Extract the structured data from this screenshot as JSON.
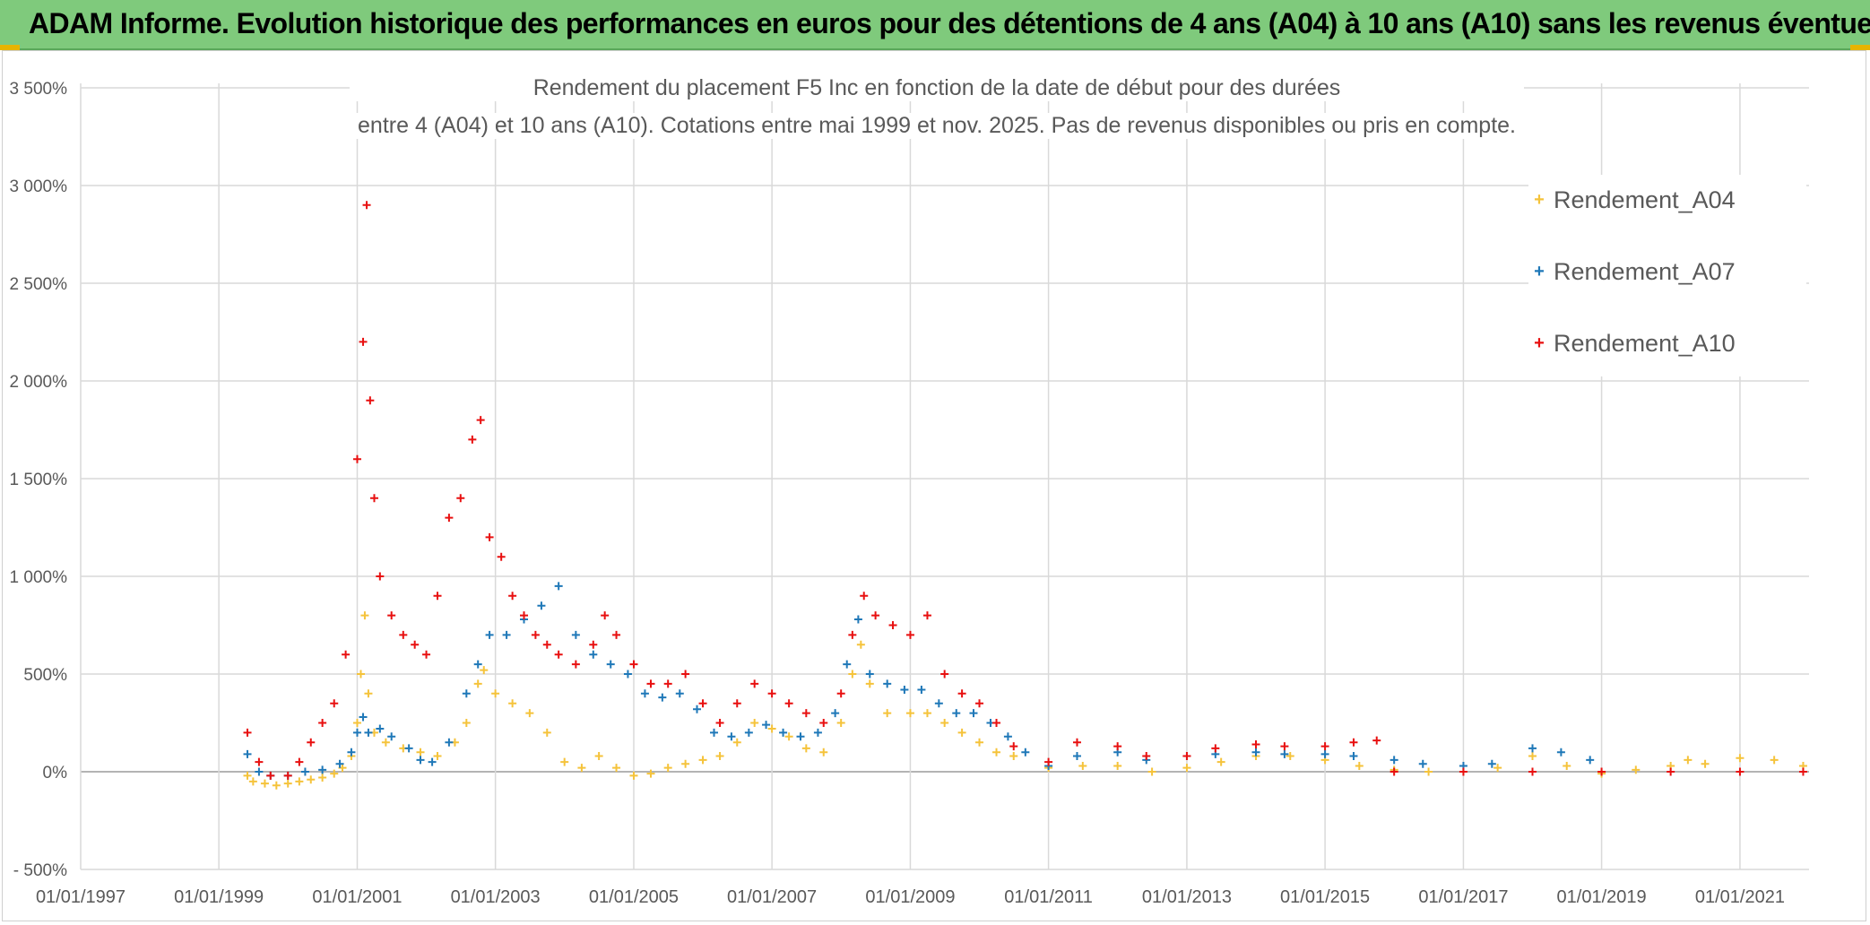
{
  "header": {
    "title": "ADAM Informe. Evolution historique des performances en euros pour des détentions de 4 ans (A04) à 10 ans (A10) sans les revenus éventuels"
  },
  "chart_data": {
    "type": "scatter",
    "title_line1": "Rendement du placement F5 Inc en fonction de la date de début pour des durées",
    "title_line2": "entre 4 (A04) et 10 ans (A10). Cotations entre mai 1999 et nov. 2025. Pas de revenus disponibles ou pris en compte.",
    "xlabel": "",
    "ylabel": "",
    "x_ticks": [
      "01/01/1997",
      "01/01/1999",
      "01/01/2001",
      "01/01/2003",
      "01/01/2005",
      "01/01/2007",
      "01/01/2009",
      "01/01/2011",
      "01/01/2013",
      "01/01/2015",
      "01/01/2017",
      "01/01/2019",
      "01/01/2021"
    ],
    "y_ticks": [
      "- 500%",
      "0%",
      "500%",
      "1 000%",
      "1 500%",
      "2 000%",
      "2 500%",
      "3 000%",
      "3 500%"
    ],
    "ylim": [
      -500,
      3500
    ],
    "xlim": [
      "1997-01-01",
      "2022-01-01"
    ],
    "grid": true,
    "legend_position": "top-right",
    "marker": "+",
    "series": [
      {
        "name": "Rendement_A04",
        "color": "#f5c33b",
        "points": [
          [
            "1999-06-01",
            -20
          ],
          [
            "1999-07-01",
            -50
          ],
          [
            "1999-09-01",
            -60
          ],
          [
            "1999-11-01",
            -70
          ],
          [
            "2000-01-01",
            -60
          ],
          [
            "2000-03-01",
            -50
          ],
          [
            "2000-05-01",
            -40
          ],
          [
            "2000-07-01",
            -30
          ],
          [
            "2000-09-01",
            -10
          ],
          [
            "2000-10-15",
            20
          ],
          [
            "2000-12-01",
            80
          ],
          [
            "2001-01-01",
            250
          ],
          [
            "2001-01-20",
            500
          ],
          [
            "2001-02-10",
            800
          ],
          [
            "2001-03-01",
            400
          ],
          [
            "2001-04-01",
            200
          ],
          [
            "2001-06-01",
            150
          ],
          [
            "2001-09-01",
            120
          ],
          [
            "2001-12-01",
            100
          ],
          [
            "2002-03-01",
            80
          ],
          [
            "2002-06-01",
            150
          ],
          [
            "2002-08-01",
            250
          ],
          [
            "2002-10-01",
            450
          ],
          [
            "2002-11-01",
            520
          ],
          [
            "2003-01-01",
            400
          ],
          [
            "2003-04-01",
            350
          ],
          [
            "2003-07-01",
            300
          ],
          [
            "2003-10-01",
            200
          ],
          [
            "2004-01-01",
            50
          ],
          [
            "2004-04-01",
            20
          ],
          [
            "2004-07-01",
            80
          ],
          [
            "2004-10-01",
            20
          ],
          [
            "2005-01-01",
            -20
          ],
          [
            "2005-04-01",
            -10
          ],
          [
            "2005-07-01",
            20
          ],
          [
            "2005-10-01",
            40
          ],
          [
            "2006-01-01",
            60
          ],
          [
            "2006-04-01",
            80
          ],
          [
            "2006-07-01",
            150
          ],
          [
            "2006-10-01",
            250
          ],
          [
            "2007-01-01",
            220
          ],
          [
            "2007-04-01",
            180
          ],
          [
            "2007-07-01",
            120
          ],
          [
            "2007-10-01",
            100
          ],
          [
            "2008-01-01",
            250
          ],
          [
            "2008-03-01",
            500
          ],
          [
            "2008-04-15",
            650
          ],
          [
            "2008-06-01",
            450
          ],
          [
            "2008-09-01",
            300
          ],
          [
            "2009-01-01",
            300
          ],
          [
            "2009-04-01",
            300
          ],
          [
            "2009-07-01",
            250
          ],
          [
            "2009-10-01",
            200
          ],
          [
            "2010-01-01",
            150
          ],
          [
            "2010-04-01",
            100
          ],
          [
            "2010-07-01",
            80
          ],
          [
            "2011-01-01",
            20
          ],
          [
            "2011-07-01",
            30
          ],
          [
            "2012-01-01",
            30
          ],
          [
            "2012-07-01",
            0
          ],
          [
            "2013-01-01",
            20
          ],
          [
            "2013-07-01",
            50
          ],
          [
            "2014-01-01",
            80
          ],
          [
            "2014-07-01",
            80
          ],
          [
            "2015-01-01",
            60
          ],
          [
            "2015-07-01",
            30
          ],
          [
            "2016-01-01",
            10
          ],
          [
            "2016-07-01",
            0
          ],
          [
            "2017-01-01",
            0
          ],
          [
            "2017-07-01",
            20
          ],
          [
            "2018-01-01",
            80
          ],
          [
            "2018-07-01",
            30
          ],
          [
            "2019-01-01",
            -10
          ],
          [
            "2019-07-01",
            10
          ],
          [
            "2020-01-01",
            30
          ],
          [
            "2020-04-01",
            60
          ],
          [
            "2020-07-01",
            40
          ],
          [
            "2021-01-01",
            70
          ],
          [
            "2021-07-01",
            60
          ],
          [
            "2021-12-01",
            30
          ]
        ]
      },
      {
        "name": "Rendement_A07",
        "color": "#1f78b8",
        "points": [
          [
            "1999-06-01",
            90
          ],
          [
            "1999-08-01",
            0
          ],
          [
            "1999-10-01",
            -20
          ],
          [
            "2000-01-01",
            -20
          ],
          [
            "2000-04-01",
            0
          ],
          [
            "2000-07-01",
            10
          ],
          [
            "2000-10-01",
            40
          ],
          [
            "2000-12-01",
            100
          ],
          [
            "2001-01-01",
            200
          ],
          [
            "2001-02-01",
            280
          ],
          [
            "2001-03-01",
            200
          ],
          [
            "2001-05-01",
            220
          ],
          [
            "2001-07-01",
            180
          ],
          [
            "2001-10-01",
            120
          ],
          [
            "2001-12-01",
            60
          ],
          [
            "2002-02-01",
            50
          ],
          [
            "2002-05-01",
            150
          ],
          [
            "2002-08-01",
            400
          ],
          [
            "2002-10-01",
            550
          ],
          [
            "2002-12-01",
            700
          ],
          [
            "2003-03-01",
            700
          ],
          [
            "2003-06-01",
            780
          ],
          [
            "2003-09-01",
            850
          ],
          [
            "2003-12-01",
            950
          ],
          [
            "2004-03-01",
            700
          ],
          [
            "2004-06-01",
            600
          ],
          [
            "2004-09-01",
            550
          ],
          [
            "2004-12-01",
            500
          ],
          [
            "2005-03-01",
            400
          ],
          [
            "2005-06-01",
            380
          ],
          [
            "2005-09-01",
            400
          ],
          [
            "2005-12-01",
            320
          ],
          [
            "2006-03-01",
            200
          ],
          [
            "2006-06-01",
            180
          ],
          [
            "2006-09-01",
            200
          ],
          [
            "2006-12-01",
            240
          ],
          [
            "2007-03-01",
            200
          ],
          [
            "2007-06-01",
            180
          ],
          [
            "2007-09-01",
            200
          ],
          [
            "2007-12-01",
            300
          ],
          [
            "2008-02-01",
            550
          ],
          [
            "2008-04-01",
            780
          ],
          [
            "2008-06-01",
            500
          ],
          [
            "2008-09-01",
            450
          ],
          [
            "2008-12-01",
            420
          ],
          [
            "2009-03-01",
            420
          ],
          [
            "2009-06-01",
            350
          ],
          [
            "2009-09-01",
            300
          ],
          [
            "2009-12-01",
            300
          ],
          [
            "2010-03-01",
            250
          ],
          [
            "2010-06-01",
            180
          ],
          [
            "2010-09-01",
            100
          ],
          [
            "2011-01-01",
            30
          ],
          [
            "2011-06-01",
            80
          ],
          [
            "2012-01-01",
            100
          ],
          [
            "2012-06-01",
            60
          ],
          [
            "2013-01-01",
            80
          ],
          [
            "2013-06-01",
            90
          ],
          [
            "2014-01-01",
            100
          ],
          [
            "2014-06-01",
            90
          ],
          [
            "2015-01-01",
            90
          ],
          [
            "2015-06-01",
            80
          ],
          [
            "2016-01-01",
            60
          ],
          [
            "2016-06-01",
            40
          ],
          [
            "2017-01-01",
            30
          ],
          [
            "2017-06-01",
            40
          ],
          [
            "2018-01-01",
            120
          ],
          [
            "2018-06-01",
            100
          ],
          [
            "2018-11-01",
            60
          ]
        ]
      },
      {
        "name": "Rendement_A10",
        "color": "#e81010",
        "points": [
          [
            "1999-06-01",
            200
          ],
          [
            "1999-08-01",
            50
          ],
          [
            "1999-10-01",
            -20
          ],
          [
            "2000-01-01",
            -20
          ],
          [
            "2000-03-01",
            50
          ],
          [
            "2000-05-01",
            150
          ],
          [
            "2000-07-01",
            250
          ],
          [
            "2000-09-01",
            350
          ],
          [
            "2000-11-01",
            600
          ],
          [
            "2001-01-01",
            1600
          ],
          [
            "2001-02-01",
            2200
          ],
          [
            "2001-02-20",
            2900
          ],
          [
            "2001-03-10",
            1900
          ],
          [
            "2001-04-01",
            1400
          ],
          [
            "2001-05-01",
            1000
          ],
          [
            "2001-07-01",
            800
          ],
          [
            "2001-09-01",
            700
          ],
          [
            "2001-11-01",
            650
          ],
          [
            "2002-01-01",
            600
          ],
          [
            "2002-03-01",
            900
          ],
          [
            "2002-05-01",
            1300
          ],
          [
            "2002-07-01",
            1400
          ],
          [
            "2002-09-01",
            1700
          ],
          [
            "2002-10-15",
            1800
          ],
          [
            "2002-12-01",
            1200
          ],
          [
            "2003-02-01",
            1100
          ],
          [
            "2003-04-01",
            900
          ],
          [
            "2003-06-01",
            800
          ],
          [
            "2003-08-01",
            700
          ],
          [
            "2003-10-01",
            650
          ],
          [
            "2003-12-01",
            600
          ],
          [
            "2004-03-01",
            550
          ],
          [
            "2004-06-01",
            650
          ],
          [
            "2004-08-01",
            800
          ],
          [
            "2004-10-01",
            700
          ],
          [
            "2005-01-01",
            550
          ],
          [
            "2005-04-01",
            450
          ],
          [
            "2005-07-01",
            450
          ],
          [
            "2005-10-01",
            500
          ],
          [
            "2006-01-01",
            350
          ],
          [
            "2006-04-01",
            250
          ],
          [
            "2006-07-01",
            350
          ],
          [
            "2006-10-01",
            450
          ],
          [
            "2007-01-01",
            400
          ],
          [
            "2007-04-01",
            350
          ],
          [
            "2007-07-01",
            300
          ],
          [
            "2007-10-01",
            250
          ],
          [
            "2008-01-01",
            400
          ],
          [
            "2008-03-01",
            700
          ],
          [
            "2008-05-01",
            900
          ],
          [
            "2008-07-01",
            800
          ],
          [
            "2008-10-01",
            750
          ],
          [
            "2009-01-01",
            700
          ],
          [
            "2009-04-01",
            800
          ],
          [
            "2009-07-01",
            500
          ],
          [
            "2009-10-01",
            400
          ],
          [
            "2010-01-01",
            350
          ],
          [
            "2010-04-01",
            250
          ],
          [
            "2010-07-01",
            130
          ],
          [
            "2011-01-01",
            50
          ],
          [
            "2011-06-01",
            150
          ],
          [
            "2012-01-01",
            130
          ],
          [
            "2012-06-01",
            80
          ],
          [
            "2013-01-01",
            80
          ],
          [
            "2013-06-01",
            120
          ],
          [
            "2014-01-01",
            140
          ],
          [
            "2014-06-01",
            130
          ],
          [
            "2015-01-01",
            130
          ],
          [
            "2015-06-01",
            150
          ],
          [
            "2015-10-01",
            160
          ],
          [
            "2016-01-01",
            0
          ],
          [
            "2017-01-01",
            0
          ],
          [
            "2018-01-01",
            0
          ],
          [
            "2019-01-01",
            0
          ],
          [
            "2020-01-01",
            0
          ],
          [
            "2021-01-01",
            0
          ],
          [
            "2021-12-01",
            0
          ]
        ]
      }
    ]
  }
}
